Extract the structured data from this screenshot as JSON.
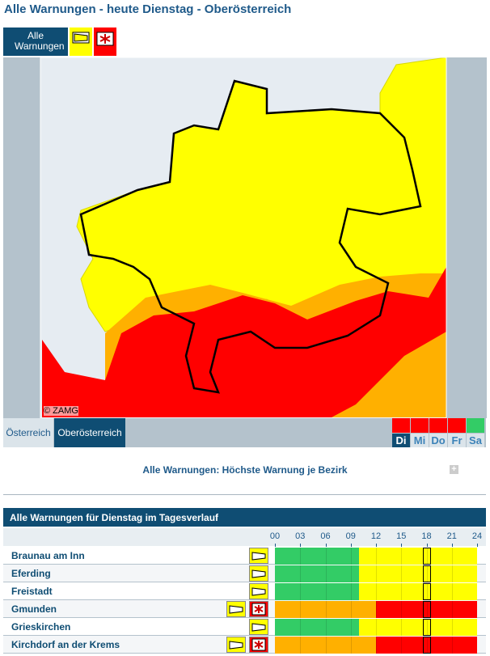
{
  "header": {
    "title": "Alle Warnungen - heute Dienstag - Oberösterreich"
  },
  "tabs": {
    "all": "Alle Warnungen"
  },
  "map": {
    "credit": "© ZAMG"
  },
  "regions": [
    "Österreich",
    "Oberösterreich"
  ],
  "days": [
    {
      "label": "Di",
      "color": "#ff0000"
    },
    {
      "label": "Mi",
      "color": "#ff0000"
    },
    {
      "label": "Do",
      "color": "#ff0000"
    },
    {
      "label": "Fr",
      "color": "#ff0000"
    },
    {
      "label": "Sa",
      "color": "#33cc66"
    }
  ],
  "summary": "Alle Warnungen: Höchste Warnung je Bezirk",
  "table": {
    "title": "Alle Warnungen für Dienstag im Tagesverlauf",
    "hours": [
      {
        "value": 0,
        "label": "00"
      },
      {
        "value": 3,
        "label": "03"
      },
      {
        "value": 6,
        "label": "06"
      },
      {
        "value": 9,
        "label": "09"
      },
      12,
      15,
      18,
      21,
      24
    ],
    "now": 18,
    "rows": [
      {
        "name": "Braunau am Inn",
        "icons": [
          "#ffff00"
        ],
        "segments": [
          {
            "from": 0,
            "to": 10,
            "color": "#33cc66"
          },
          {
            "from": 10,
            "to": 24,
            "color": "#ffff00"
          }
        ]
      },
      {
        "name": "Eferding",
        "icons": [
          "#ffff00"
        ],
        "segments": [
          {
            "from": 0,
            "to": 10,
            "color": "#33cc66"
          },
          {
            "from": 10,
            "to": 24,
            "color": "#ffff00"
          }
        ]
      },
      {
        "name": "Freistadt",
        "icons": [
          "#ffff00"
        ],
        "segments": [
          {
            "from": 0,
            "to": 10,
            "color": "#33cc66"
          },
          {
            "from": 10,
            "to": 24,
            "color": "#ffff00"
          }
        ]
      },
      {
        "name": "Gmunden",
        "icons": [
          "#ffff00",
          "#ff0000"
        ],
        "segments": [
          {
            "from": 0,
            "to": 12,
            "color": "#ffb000"
          },
          {
            "from": 12,
            "to": 24,
            "color": "#ff0000"
          }
        ]
      },
      {
        "name": "Grieskirchen",
        "icons": [
          "#ffff00"
        ],
        "segments": [
          {
            "from": 0,
            "to": 10,
            "color": "#33cc66"
          },
          {
            "from": 10,
            "to": 24,
            "color": "#ffff00"
          }
        ]
      },
      {
        "name": "Kirchdorf an der Krems",
        "icons": [
          "#ffff00",
          "#ff0000"
        ],
        "segments": [
          {
            "from": 0,
            "to": 12,
            "color": "#ffb000"
          },
          {
            "from": 12,
            "to": 24,
            "color": "#ff0000"
          }
        ]
      }
    ]
  }
}
